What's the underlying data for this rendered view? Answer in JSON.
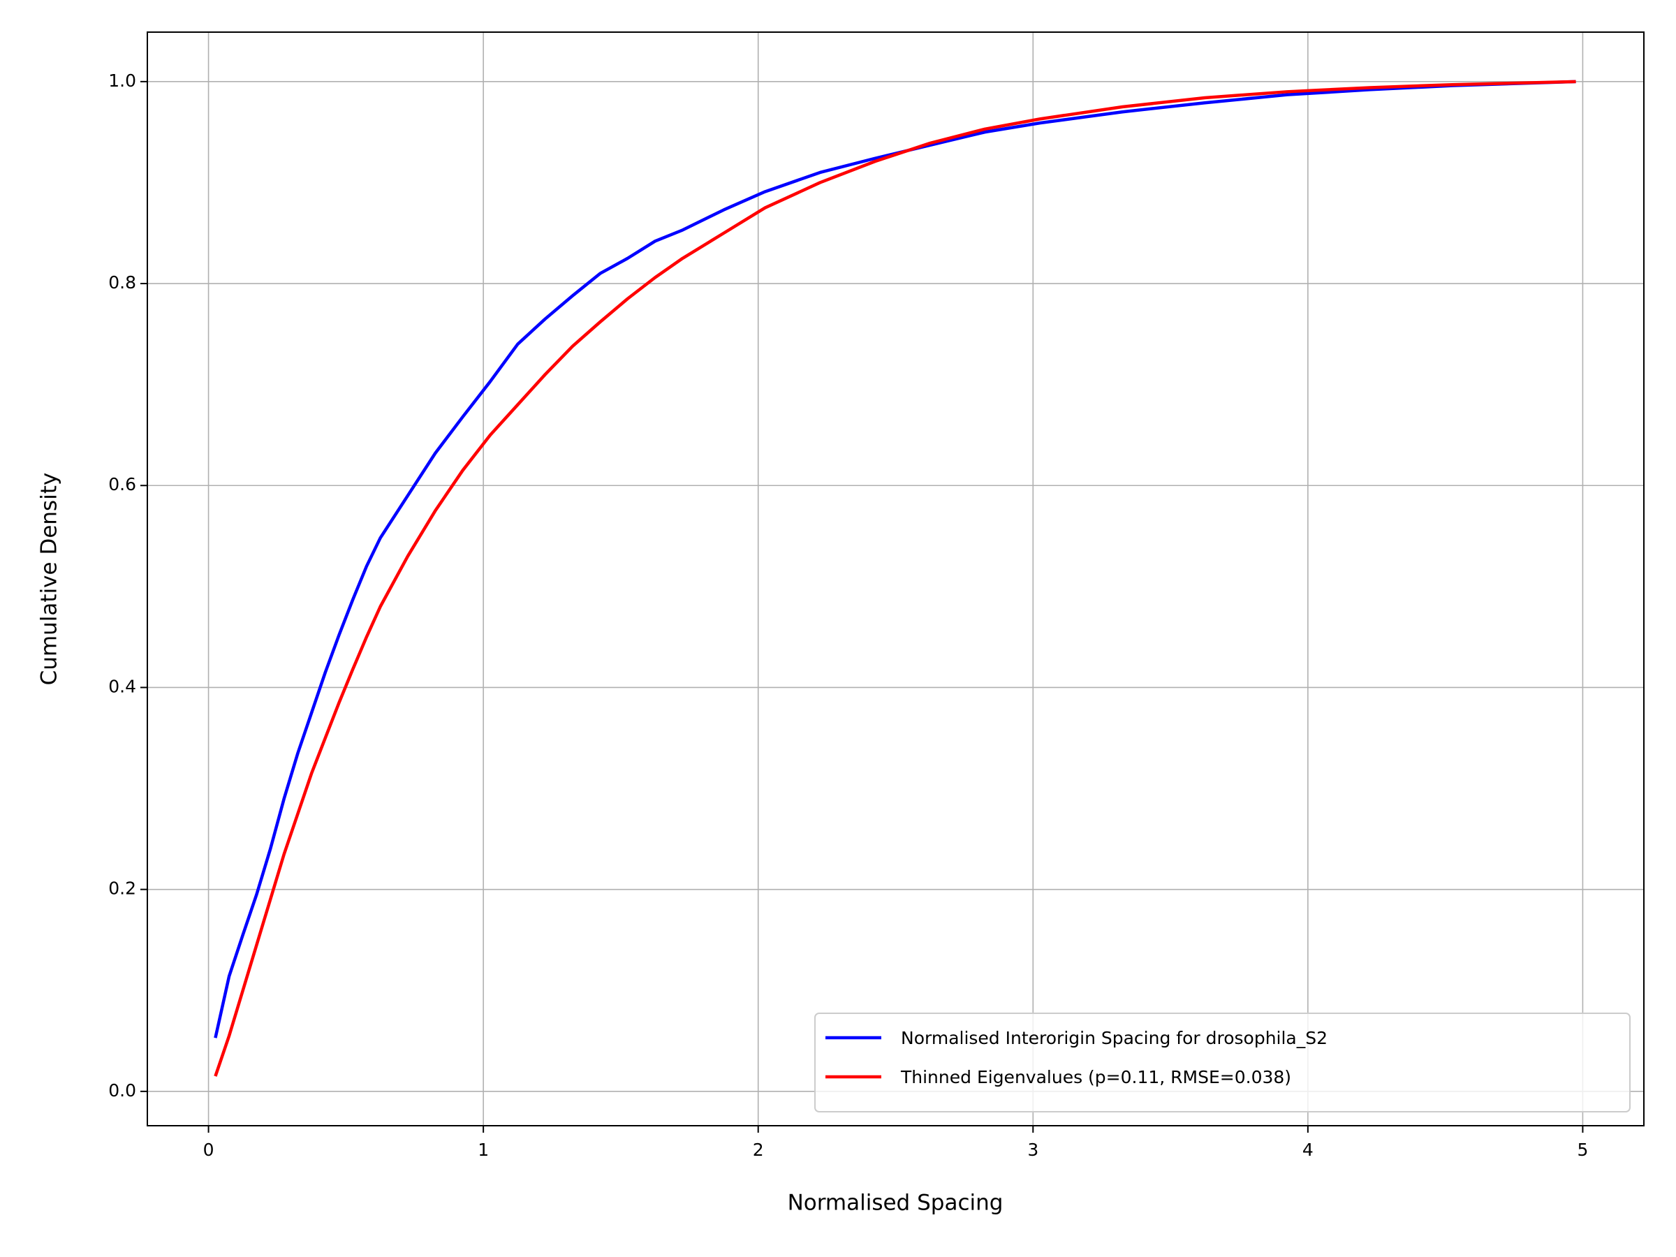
{
  "chart_data": {
    "type": "line",
    "x_label": "Normalised Spacing",
    "y_label": "Cumulative Density",
    "x": [
      0.025,
      0.075,
      0.125,
      0.175,
      0.225,
      0.275,
      0.325,
      0.375,
      0.425,
      0.475,
      0.525,
      0.575,
      0.625,
      0.725,
      0.825,
      0.925,
      1.025,
      1.125,
      1.225,
      1.325,
      1.425,
      1.525,
      1.625,
      1.725,
      1.875,
      2.025,
      2.225,
      2.425,
      2.625,
      2.825,
      3.025,
      3.325,
      3.625,
      3.925,
      4.225,
      4.525,
      4.975
    ],
    "series": [
      {
        "name": "Normalised Interorigin Spacing for drosophila_S2",
        "color": "#0000ff",
        "values": [
          0.053,
          0.114,
          0.155,
          0.195,
          0.24,
          0.29,
          0.335,
          0.375,
          0.415,
          0.452,
          0.487,
          0.52,
          0.548,
          0.59,
          0.632,
          0.668,
          0.703,
          0.74,
          0.765,
          0.788,
          0.81,
          0.825,
          0.842,
          0.853,
          0.873,
          0.891,
          0.91,
          0.924,
          0.937,
          0.95,
          0.959,
          0.97,
          0.979,
          0.987,
          0.992,
          0.996,
          1.0
        ]
      },
      {
        "name": "Thinned Eigenvalues (p=0.11, RMSE=0.038)",
        "color": "#ff0000",
        "values": [
          0.015,
          0.055,
          0.1,
          0.145,
          0.19,
          0.235,
          0.275,
          0.315,
          0.35,
          0.385,
          0.418,
          0.45,
          0.48,
          0.53,
          0.575,
          0.615,
          0.65,
          0.68,
          0.71,
          0.738,
          0.762,
          0.785,
          0.806,
          0.825,
          0.85,
          0.875,
          0.9,
          0.921,
          0.939,
          0.953,
          0.963,
          0.975,
          0.984,
          0.99,
          0.994,
          0.997,
          1.0
        ]
      }
    ],
    "xlim": [
      -0.2225,
      5.2225
    ],
    "ylim": [
      -0.034,
      1.049
    ],
    "xticks": [
      0,
      1,
      2,
      3,
      4,
      5
    ],
    "yticks": [
      {
        "value": 0,
        "label": "0.0"
      },
      0.2,
      0.4,
      0.6,
      0.8,
      {
        "value": 1,
        "label": "1.0"
      }
    ],
    "grid": true,
    "legend": "lower right"
  }
}
